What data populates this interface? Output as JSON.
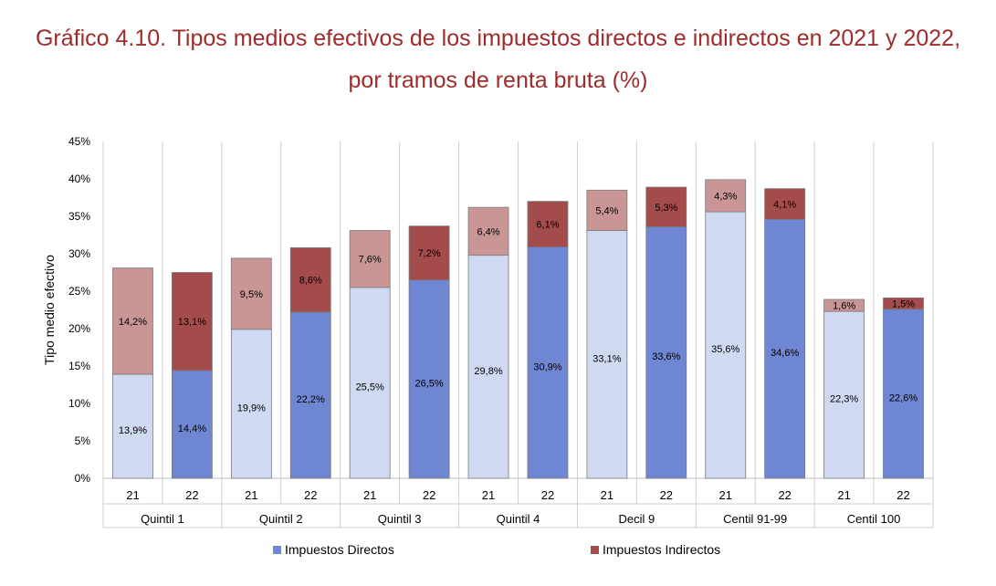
{
  "chart_data": {
    "type": "bar",
    "stacked": true,
    "title_line1": "Gráfico 4.10. Tipos medios efectivos de los impuestos directos e indirectos en 2021 y 2022,",
    "title_line2": "por tramos de renta bruta (%)",
    "ylabel": "Tipo medio efectivo",
    "ylim": [
      0,
      45
    ],
    "yticks": [
      "0%",
      "5%",
      "10%",
      "15%",
      "20%",
      "25%",
      "30%",
      "35%",
      "40%",
      "45%"
    ],
    "grid": false,
    "legend_position": "bottom",
    "groups": [
      "Quintil 1",
      "Quintil 2",
      "Quintil 3",
      "Quintil 4",
      "Decil 9",
      "Centil 91-99",
      "Centil 100"
    ],
    "bars": [
      {
        "group": "Quintil 1",
        "year": "21",
        "directos": 13.9,
        "indirectos": 14.2,
        "directos_label": "13,9%",
        "indirectos_label": "14,2%"
      },
      {
        "group": "Quintil 1",
        "year": "22",
        "directos": 14.4,
        "indirectos": 13.1,
        "directos_label": "14,4%",
        "indirectos_label": "13,1%"
      },
      {
        "group": "Quintil 2",
        "year": "21",
        "directos": 19.9,
        "indirectos": 9.5,
        "directos_label": "19,9%",
        "indirectos_label": "9,5%"
      },
      {
        "group": "Quintil 2",
        "year": "22",
        "directos": 22.2,
        "indirectos": 8.6,
        "directos_label": "22,2%",
        "indirectos_label": "8,6%"
      },
      {
        "group": "Quintil 3",
        "year": "21",
        "directos": 25.5,
        "indirectos": 7.6,
        "directos_label": "25,5%",
        "indirectos_label": "7,6%"
      },
      {
        "group": "Quintil 3",
        "year": "22",
        "directos": 26.5,
        "indirectos": 7.2,
        "directos_label": "26,5%",
        "indirectos_label": "7,2%"
      },
      {
        "group": "Quintil 4",
        "year": "21",
        "directos": 29.8,
        "indirectos": 6.4,
        "directos_label": "29,8%",
        "indirectos_label": "6,4%"
      },
      {
        "group": "Quintil 4",
        "year": "22",
        "directos": 30.9,
        "indirectos": 6.1,
        "directos_label": "30,9%",
        "indirectos_label": "6,1%"
      },
      {
        "group": "Decil 9",
        "year": "21",
        "directos": 33.1,
        "indirectos": 5.4,
        "directos_label": "33,1%",
        "indirectos_label": "5,4%"
      },
      {
        "group": "Decil 9",
        "year": "22",
        "directos": 33.6,
        "indirectos": 5.3,
        "directos_label": "33,6%",
        "indirectos_label": "5,3%"
      },
      {
        "group": "Centil 91-99",
        "year": "21",
        "directos": 35.6,
        "indirectos": 4.3,
        "directos_label": "35,6%",
        "indirectos_label": "4,3%"
      },
      {
        "group": "Centil 91-99",
        "year": "22",
        "directos": 34.6,
        "indirectos": 4.1,
        "directos_label": "34,6%",
        "indirectos_label": "4,1%"
      },
      {
        "group": "Centil 100",
        "year": "21",
        "directos": 22.3,
        "indirectos": 1.6,
        "directos_label": "22,3%",
        "indirectos_label": "1,6%"
      },
      {
        "group": "Centil 100",
        "year": "22",
        "directos": 22.6,
        "indirectos": 1.5,
        "directos_label": "22,6%",
        "indirectos_label": "1,5%"
      }
    ],
    "series": [
      {
        "name": "Impuestos Directos",
        "color_2022": "#6f86d2",
        "color_2021": "#d0d9f2"
      },
      {
        "name": "Impuestos Indirectos",
        "color_2022": "#a44b4b",
        "color_2021": "#c99595"
      }
    ]
  }
}
